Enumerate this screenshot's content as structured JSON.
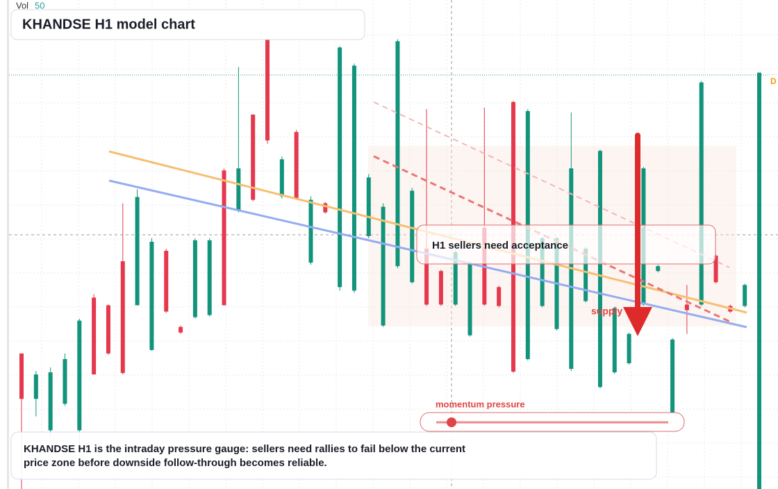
{
  "vol_label": "Vol",
  "vol_value": "50",
  "price_tag": "D",
  "chart_data": {
    "type": "candlestick",
    "title": "KHANDSE H1 model chart",
    "callout": "H1 sellers need acceptance",
    "zone_label": "supply",
    "gauge_label": "momentum pressure",
    "footer": "KHANDSE H1 is the intraday pressure gauge: sellers need rallies to fail below the current price zone before downside follow-through becomes reliable.",
    "ylim": [
      0,
      70
    ],
    "up_color": "#12937b",
    "down_color": "#e5384c",
    "open": [
      19.4,
      12.9,
      8.4,
      12.2,
      8.4,
      27.4,
      26.3,
      32.6,
      26.3,
      19.9,
      34.1,
      23.2,
      24.6,
      24.9,
      45.6,
      39.9,
      53.6,
      64.4,
      41.9,
      51.1,
      32.4,
      40.9,
      28.9,
      28.4,
      36.2,
      23.4,
      31.9,
      29.6,
      34.4,
      31.2,
      26.4,
      22.0,
      37.4,
      28.9,
      55.4,
      18.6,
      26.2,
      22.9,
      17.2,
      26.9,
      14.6,
      16.7,
      18.0,
      26.4,
      31.2,
      9.1,
      26.4,
      26.4,
      33.4,
      26.2,
      26.2,
      0
    ],
    "high": [
      19.4,
      16.9,
      17.4,
      19.4,
      24.4,
      27.9,
      26.4,
      40.9,
      42.9,
      35.9,
      34.4,
      23.4,
      35.9,
      35.9,
      45.9,
      60.4,
      53.6,
      64.9,
      47.6,
      51.4,
      41.9,
      41.1,
      63.4,
      60.9,
      45.1,
      40.9,
      64.4,
      43.1,
      54.4,
      31.4,
      34.1,
      32.6,
      54.6,
      29.1,
      55.6,
      54.4,
      36.1,
      36.1,
      53.9,
      34.6,
      48.6,
      26.1,
      22.4,
      46.1,
      32.1,
      21.6,
      29.2,
      58.4,
      33.6,
      26.4,
      29.4,
      59.6
    ],
    "low": [
      0,
      10.4,
      7.4,
      11.9,
      6.4,
      16.4,
      19.2,
      16.4,
      26.3,
      19.8,
      25.2,
      22.2,
      24.4,
      24.7,
      26.3,
      39.6,
      41.2,
      49.4,
      41.6,
      41.4,
      32.1,
      39.4,
      28.4,
      28.1,
      35.9,
      23.2,
      31.6,
      29.4,
      26.2,
      26.2,
      26.2,
      21.8,
      26.2,
      26.0,
      16.6,
      18.4,
      26.0,
      22.7,
      16.9,
      26.7,
      14.4,
      16.5,
      17.8,
      26.2,
      31.0,
      8.9,
      22.2,
      26.2,
      29.4,
      25.2,
      26.0,
      0
    ],
    "close": [
      12.9,
      16.4,
      16.7,
      18.6,
      24.1,
      16.4,
      19.4,
      16.6,
      41.8,
      35.4,
      25.4,
      22.4,
      35.6,
      35.6,
      26.3,
      45.9,
      41.4,
      49.9,
      47.2,
      41.6,
      41.4,
      39.6,
      63.2,
      60.6,
      44.6,
      40.4,
      64.1,
      42.7,
      26.4,
      26.4,
      33.9,
      32.4,
      26.4,
      26.2,
      16.8,
      54.1,
      35.9,
      35.9,
      45.9,
      34.4,
      48.4,
      25.9,
      22.2,
      45.9,
      31.9,
      21.4,
      25.6,
      58.2,
      29.6,
      25.4,
      29.2,
      59.6
    ]
  }
}
